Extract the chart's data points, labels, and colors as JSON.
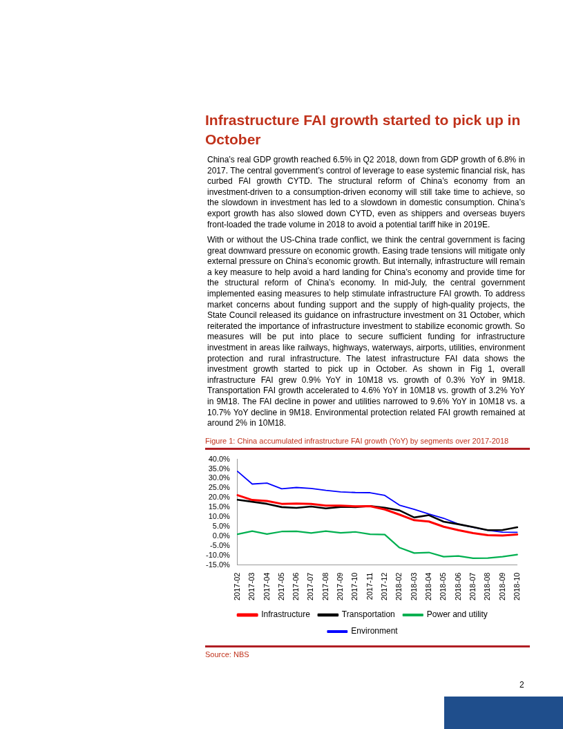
{
  "chart_data": {
    "type": "line",
    "title": "Figure 1: China accumulated infrastructure FAI growth (YoY) by segments over 2017-2018",
    "categories": [
      "2017-02",
      "2017-03",
      "2017-04",
      "2017-05",
      "2017-06",
      "2017-07",
      "2017-08",
      "2017-09",
      "2017-10",
      "2017-11",
      "2017-12",
      "2018-02",
      "2018-03",
      "2018-04",
      "2018-05",
      "2018-06",
      "2018-07",
      "2018-08",
      "2018-09",
      "2018-10"
    ],
    "series": [
      {
        "name": "Infrastructure",
        "color": "#ff0000",
        "values": [
          21.3,
          18.8,
          18.3,
          16.8,
          16.9,
          16.8,
          15.9,
          15.9,
          15.5,
          15.6,
          13.9,
          11.2,
          8.3,
          7.6,
          4.9,
          3.1,
          1.6,
          0.5,
          0.3,
          0.9
        ]
      },
      {
        "name": "Transportation",
        "color": "#000000",
        "values": [
          18.9,
          17.9,
          16.8,
          15.1,
          14.7,
          15.4,
          14.4,
          15.2,
          15.1,
          15.7,
          14.8,
          13.4,
          9.7,
          10.9,
          7.5,
          6.2,
          4.7,
          3.1,
          3.2,
          4.6
        ]
      },
      {
        "name": "Power and utility",
        "color": "#00b050",
        "values": [
          1.0,
          2.6,
          1.1,
          2.4,
          2.5,
          1.6,
          2.6,
          1.7,
          2.2,
          1.0,
          0.8,
          -6.0,
          -8.8,
          -8.5,
          -10.7,
          -10.3,
          -11.5,
          -11.4,
          -10.7,
          -9.6
        ]
      },
      {
        "name": "Environment",
        "color": "#0000ff",
        "values": [
          33.7,
          27.1,
          27.6,
          24.6,
          25.3,
          24.8,
          23.8,
          23.0,
          22.7,
          22.6,
          21.2,
          16.1,
          13.9,
          11.5,
          9.3,
          6.3,
          4.6,
          3.1,
          2.1,
          2.0
        ]
      }
    ],
    "ylim": [
      -15,
      40
    ],
    "yticks": [
      {
        "value": -15,
        "label": "-15.0%"
      },
      {
        "value": -10,
        "label": "-10.0%"
      },
      {
        "value": -5,
        "label": "-5.0%"
      },
      {
        "value": 0,
        "label": "0.0%"
      },
      {
        "value": 5,
        "label": "5.0%"
      },
      {
        "value": 10,
        "label": "10.0%"
      },
      {
        "value": 15,
        "label": "15.0%"
      },
      {
        "value": 20,
        "label": "20.0%"
      },
      {
        "value": 25,
        "label": "25.0%"
      },
      {
        "value": 30,
        "label": "30.0%"
      },
      {
        "value": 35,
        "label": "35.0%"
      },
      {
        "value": 40,
        "label": "40.0%"
      }
    ],
    "grid": false,
    "legend": "bottom",
    "marker": "none",
    "line_style": "solid",
    "annotations": [
      "Infrastructure FAI growth started to pick up in October",
      "China’s real GDP growth reached 6.5% in Q2 2018, down from GDP growth of 6.8% in 2017. The central government’s control of leverage to ease systemic financial risk, has curbed FAI growth CYTD. The structural reform of China’s economy from an investment-driven to a consumption-driven economy will still take time to achieve, so the slowdown in investment has led to a slowdown in domestic consumption. China’s export growth has also slowed down CYTD, even as shippers and overseas buyers front-loaded the trade volume in 2018 to avoid a potential tariff hike in 2019E.",
      "With or without the US-China trade conflict, we think the central government is facing great downward pressure on economic growth. Easing trade tensions will mitigate only external pressure on China’s economic growth. But internally, infrastructure will remain a key measure to help avoid a hard landing for China’s economy and provide time for the structural reform of China’s economy. In mid-July, the central government implemented easing measures to help stimulate infrastructure FAI growth. To address market concerns about funding support and the supply of high-quality projects, the State Council released its guidance on infrastructure investment on 31 October, which reiterated the importance of infrastructure investment to stabilize economic growth. So measures will be put into place to secure sufficient funding for infrastructure investment in areas like railways, highways, waterways, airports, utilities, environment protection and rural infrastructure. The latest infrastructure FAI data shows the investment growth started to pick up in October. As shown in Fig 1, overall infrastructure FAI grew 0.9% YoY in 10M18 vs. growth of 0.3% YoY in 9M18. Transportation FAI growth accelerated to 4.6% YoY in 10M18 vs. growth of 3.2% YoY in 9M18. The FAI decline in power and utilities narrowed to 9.6% YoY in 10M18 vs. a 10.7% YoY decline in 9M18. Environmental protection related FAI growth remained at around 2% in 10M18.",
      "Source: NBS",
      "2"
    ]
  }
}
